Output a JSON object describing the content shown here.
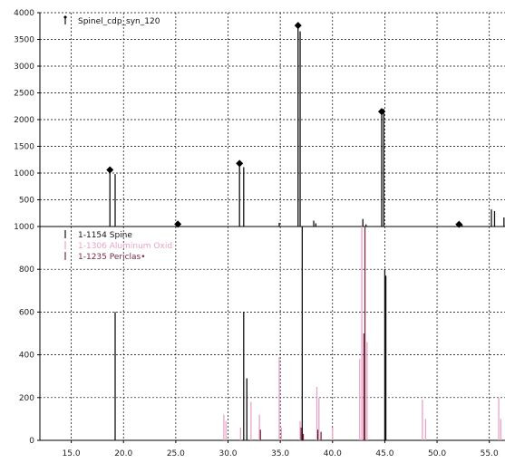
{
  "chart_data": [
    {
      "type": "stick",
      "title": "",
      "xlabel": "",
      "ylabel": "",
      "xlim": [
        12.0,
        56.5
      ],
      "ylim": [
        0,
        4000
      ],
      "grid": true,
      "yticks": [
        "0",
        "500",
        "1000",
        "1500",
        "2000",
        "2500",
        "3000",
        "3500",
        "4000"
      ],
      "legend": {
        "placement": "top-left",
        "entries": [
          {
            "label": "Spinel_cdp_syn_120",
            "color": "#111111"
          }
        ]
      },
      "series": [
        {
          "name": "Spinel_cdp_syn_120",
          "color": "#111111",
          "x": [
            18.7,
            19.2,
            25.2,
            31.1,
            31.5,
            34.9,
            36.7,
            36.9,
            38.2,
            38.4,
            42.9,
            43.2,
            44.7,
            44.9,
            52.1,
            52.4,
            55.2,
            55.5,
            56.4
          ],
          "values": [
            1060,
            980,
            45,
            1180,
            1110,
            70,
            3760,
            3650,
            110,
            60,
            140,
            40,
            2150,
            2200,
            40,
            30,
            320,
            290,
            170
          ]
        }
      ],
      "markers": {
        "shape": "diamond",
        "x": [
          18.7,
          25.2,
          31.1,
          36.7,
          44.7,
          52.1
        ],
        "values": [
          1060,
          45,
          1180,
          3760,
          2150,
          40
        ]
      }
    },
    {
      "type": "stick",
      "title": "",
      "xlabel": "",
      "ylabel": "",
      "xlim": [
        12.0,
        56.5
      ],
      "ylim": [
        0,
        1000
      ],
      "grid": true,
      "xticks": [
        "15.0",
        "20.0",
        "25.0",
        "30.0",
        "35.0",
        "40.0",
        "45.0",
        "50.0",
        "55.0"
      ],
      "yticks": [
        "0",
        "200",
        "400",
        "600",
        "800",
        "1000"
      ],
      "legend": {
        "placement": "top-left",
        "entries": [
          {
            "label": "1-1154 Spine",
            "color": "#111111"
          },
          {
            "label": "1-1306 Aluminum Oxid",
            "color": "#e9a3c8"
          },
          {
            "label": "1-1235 Periclas•",
            "color": "#7a2a45"
          }
        ]
      },
      "series": [
        {
          "name": "1-1154 Spine",
          "color": "#111111",
          "x": [
            19.2,
            31.5,
            31.8,
            37.1,
            38.6,
            45.0,
            45.1
          ],
          "values": [
            600,
            600,
            290,
            1000,
            50,
            800,
            770
          ]
        },
        {
          "name": "1-1306 Aluminum Oxid",
          "color": "#e9a3c8",
          "x": [
            29.6,
            29.8,
            31.2,
            32.2,
            33.0,
            34.9,
            35.1,
            36.9,
            38.5,
            38.7,
            40.0,
            42.6,
            42.8,
            43.3,
            48.6,
            48.9,
            55.9,
            56.1
          ],
          "values": [
            120,
            90,
            60,
            180,
            120,
            390,
            60,
            90,
            250,
            200,
            60,
            380,
            1000,
            460,
            190,
            100,
            200,
            100
          ]
        },
        {
          "name": "1-1235 Periclas•",
          "color": "#7a2a45",
          "x": [
            33.1,
            37.0,
            37.2,
            38.9,
            43.1,
            43.0
          ],
          "values": [
            50,
            60,
            30,
            40,
            1000,
            500
          ]
        }
      ]
    }
  ]
}
